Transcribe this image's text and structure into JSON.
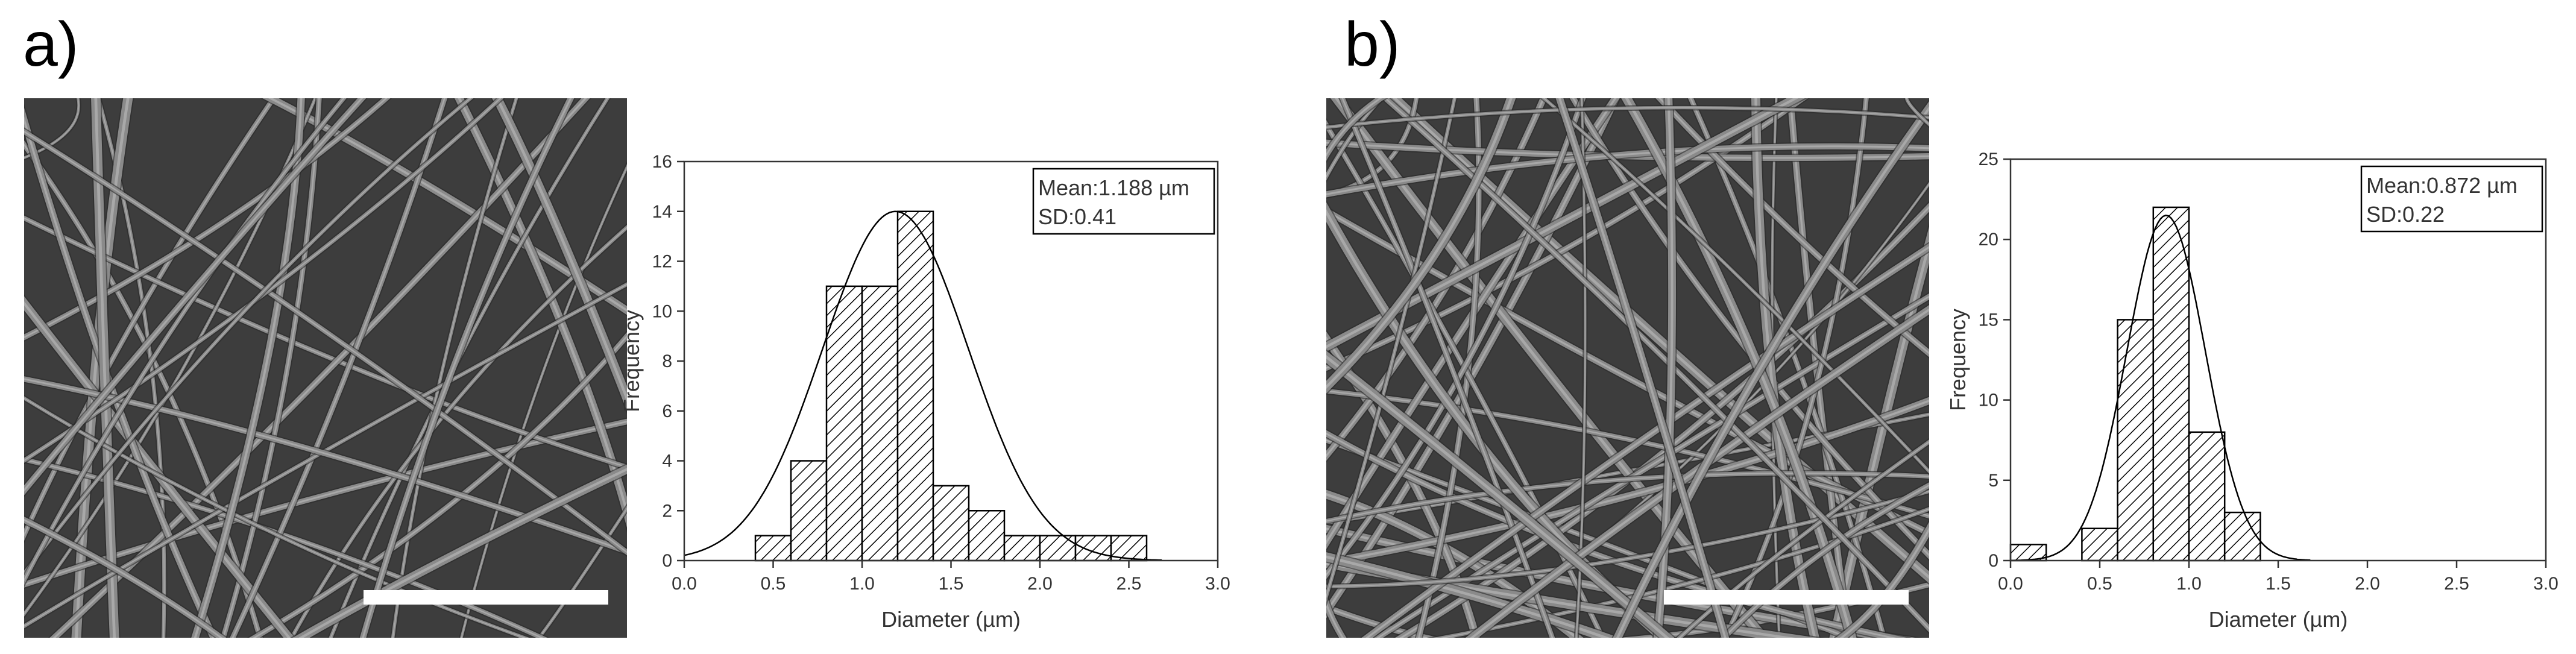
{
  "panels": [
    {
      "label": "a)"
    },
    {
      "label": "b)"
    }
  ],
  "colors": {
    "background": "#ffffff",
    "sem_background": "#3d3d3d",
    "fiber": "#8a8a8a",
    "scale_bar": "#ffffff",
    "bar_hatch": "#000000",
    "axis": "#333333"
  },
  "chart_data": [
    {
      "type": "bar",
      "subtype": "histogram with normal fit curve",
      "panel": "a)",
      "xlabel": "Diameter (µm)",
      "ylabel": "Frequency",
      "xlim": [
        0.0,
        3.0
      ],
      "ylim": [
        0,
        16
      ],
      "xticks": [
        "0.0",
        "0.5",
        "1.0",
        "1.5",
        "2.0",
        "2.5",
        "3.0"
      ],
      "yticks": [
        "0",
        "2",
        "4",
        "6",
        "8",
        "10",
        "12",
        "14",
        "16"
      ],
      "bin_width": 0.2,
      "bins": [
        {
          "start": 0.4,
          "count": 1
        },
        {
          "start": 0.6,
          "count": 4
        },
        {
          "start": 0.8,
          "count": 11
        },
        {
          "start": 1.0,
          "count": 11
        },
        {
          "start": 1.2,
          "count": 14
        },
        {
          "start": 1.4,
          "count": 3
        },
        {
          "start": 1.6,
          "count": 2
        },
        {
          "start": 1.8,
          "count": 1
        },
        {
          "start": 2.0,
          "count": 1
        },
        {
          "start": 2.2,
          "count": 1
        },
        {
          "start": 2.4,
          "count": 1
        }
      ],
      "fit": {
        "mean": 1.188,
        "sd": 0.41,
        "peak": 14
      },
      "annotation": {
        "line1": "Mean:1.188 µm",
        "line2": "SD:0.41"
      },
      "grid": false,
      "legend": "none"
    },
    {
      "type": "bar",
      "subtype": "histogram with normal fit curve",
      "panel": "b)",
      "xlabel": "Diameter (µm)",
      "ylabel": "Frequency",
      "xlim": [
        0.0,
        3.0
      ],
      "ylim": [
        0,
        25
      ],
      "xticks": [
        "0.0",
        "0.5",
        "1.0",
        "1.5",
        "2.0",
        "2.5",
        "3.0"
      ],
      "yticks": [
        "0",
        "5",
        "10",
        "15",
        "20",
        "25"
      ],
      "bin_width": 0.2,
      "bins": [
        {
          "start": 0.0,
          "count": 1
        },
        {
          "start": 0.4,
          "count": 2
        },
        {
          "start": 0.6,
          "count": 15
        },
        {
          "start": 0.8,
          "count": 22
        },
        {
          "start": 1.0,
          "count": 8
        },
        {
          "start": 1.2,
          "count": 3
        }
      ],
      "fit": {
        "mean": 0.872,
        "sd": 0.22,
        "peak": 21.5
      },
      "annotation": {
        "line1": "Mean:0.872 µm",
        "line2": "SD:0.22"
      },
      "grid": false,
      "legend": "none"
    }
  ]
}
